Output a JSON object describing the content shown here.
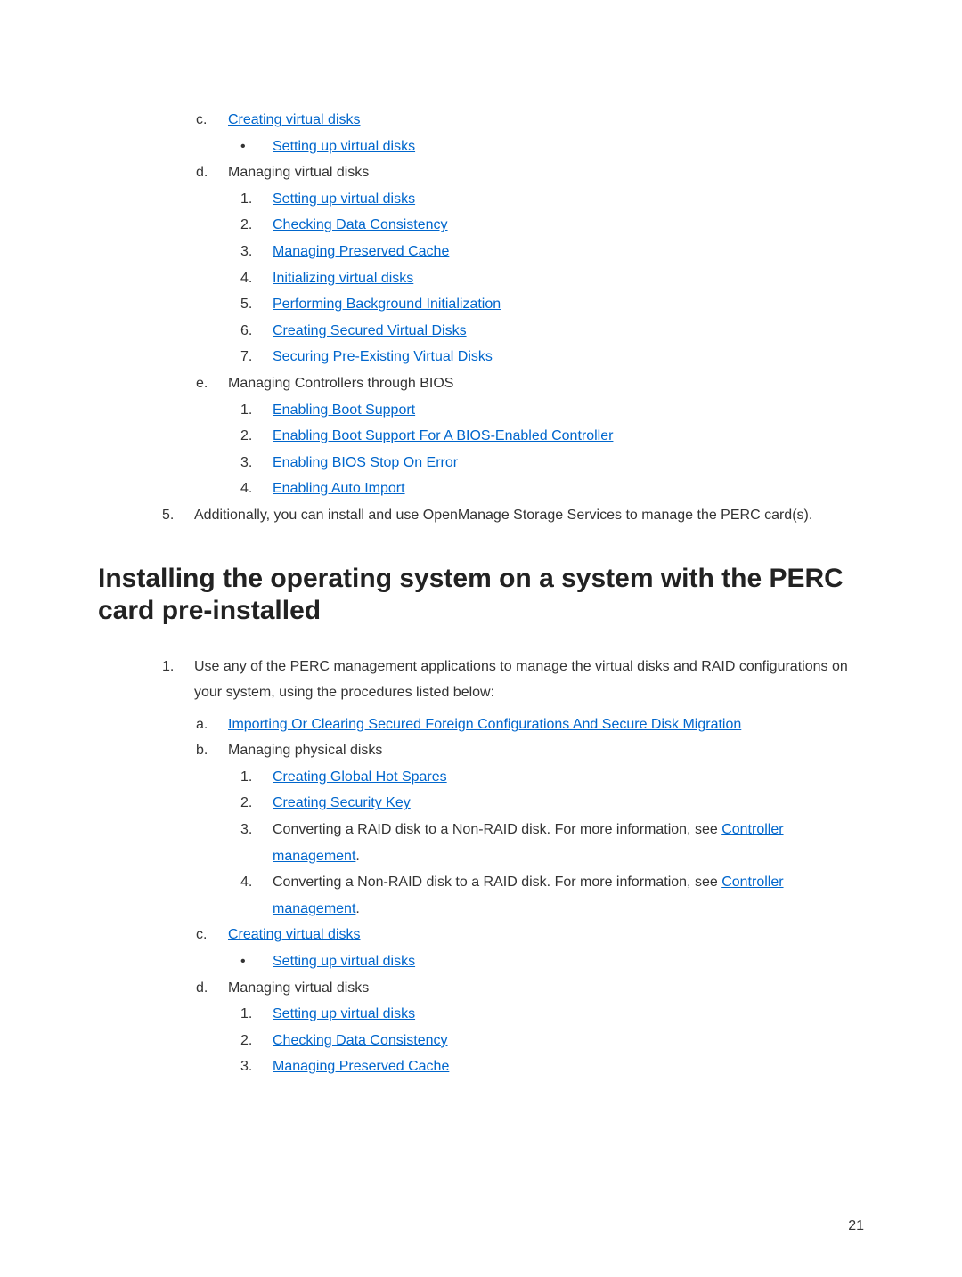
{
  "top": {
    "c": {
      "marker": "c.",
      "text": "Creating virtual disks"
    },
    "c_sub": {
      "bullet": "•",
      "text": "Setting up virtual disks"
    },
    "d": {
      "marker": "d.",
      "text": "Managing virtual disks"
    },
    "d_items": [
      {
        "n": "1.",
        "text": "Setting up virtual disks"
      },
      {
        "n": "2.",
        "text": "Checking Data Consistency"
      },
      {
        "n": "3.",
        "text": "Managing Preserved Cache"
      },
      {
        "n": "4.",
        "text": "Initializing virtual disks"
      },
      {
        "n": "5.",
        "text": "Performing Background Initialization"
      },
      {
        "n": "6.",
        "text": "Creating Secured Virtual Disks"
      },
      {
        "n": "7.",
        "text": "Securing Pre-Existing Virtual Disks"
      }
    ],
    "e": {
      "marker": "e.",
      "text": "Managing Controllers through BIOS"
    },
    "e_items": [
      {
        "n": "1.",
        "text": "Enabling Boot Support"
      },
      {
        "n": "2.",
        "text": "Enabling Boot Support For A BIOS-Enabled Controller"
      },
      {
        "n": "3.",
        "text": "Enabling BIOS Stop On Error"
      },
      {
        "n": "4.",
        "text": "Enabling Auto Import"
      }
    ],
    "five": {
      "marker": "5.",
      "text": "Additionally, you can install and use OpenManage Storage Services to manage the PERC card(s)."
    }
  },
  "heading": "Installing the operating system on a system with the PERC card pre-installed",
  "bottom": {
    "one": {
      "marker": "1.",
      "text": "Use any of the PERC management applications to manage the virtual disks and RAID configurations on your system, using the procedures listed below:"
    },
    "a": {
      "marker": "a.",
      "text": "Importing Or Clearing Secured Foreign Configurations And Secure Disk Migration"
    },
    "b": {
      "marker": "b.",
      "text": "Managing physical disks"
    },
    "b_items": [
      {
        "n": "1.",
        "link": "Creating Global Hot Spares"
      },
      {
        "n": "2.",
        "link": "Creating Security Key"
      },
      {
        "n": "3.",
        "pre": "Converting a RAID disk to a Non-RAID disk. For more information, see ",
        "link": "Controller management",
        "post": "."
      },
      {
        "n": "4.",
        "pre": "Converting a Non-RAID disk to a RAID disk. For more information, see ",
        "link": "Controller management",
        "post": "."
      }
    ],
    "c": {
      "marker": "c.",
      "text": "Creating virtual disks"
    },
    "c_sub": {
      "bullet": "•",
      "text": "Setting up virtual disks"
    },
    "d": {
      "marker": "d.",
      "text": "Managing virtual disks"
    },
    "d_items": [
      {
        "n": "1.",
        "text": "Setting up virtual disks"
      },
      {
        "n": "2.",
        "text": "Checking Data Consistency"
      },
      {
        "n": "3.",
        "text": "Managing Preserved Cache"
      }
    ]
  },
  "page_number": "21"
}
